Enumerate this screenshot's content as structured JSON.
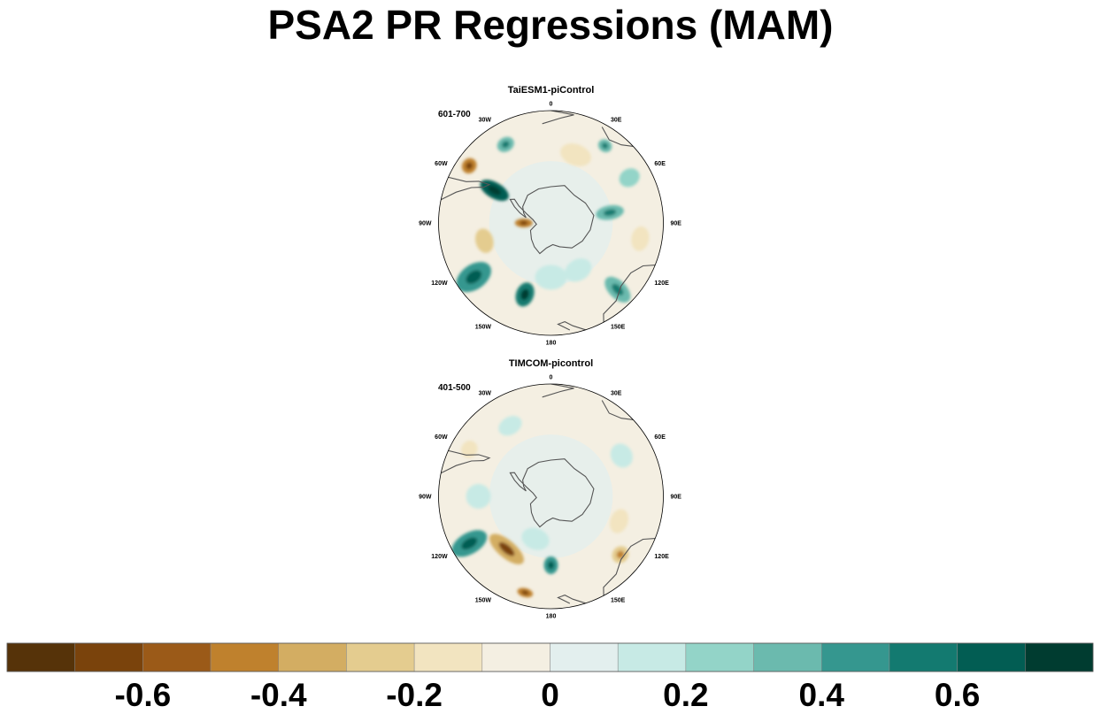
{
  "title": "PSA2 PR Regressions (MAM)",
  "panels": [
    {
      "title": "TaiESM1-piControl",
      "range": "601-700",
      "lon_labels": [
        "0",
        "30E",
        "60E",
        "90E",
        "120E",
        "150E",
        "180",
        "150W",
        "120W",
        "90W",
        "60W",
        "30W"
      ],
      "features": [
        {
          "lon": 200,
          "colat": 42,
          "v": 0.5,
          "rx": 10,
          "ry": 14
        },
        {
          "lon": 300,
          "colat": 36,
          "v": 0.6,
          "rx": 9,
          "ry": 18
        },
        {
          "lon": 305,
          "colat": 55,
          "v": -0.5,
          "rx": 9,
          "ry": 8
        },
        {
          "lon": 80,
          "colat": 33,
          "v": 0.35,
          "rx": 8,
          "ry": 16
        },
        {
          "lon": 35,
          "colat": 52,
          "v": 0.3,
          "rx": 8,
          "ry": 7
        },
        {
          "lon": 135,
          "colat": 52,
          "v": 0.35,
          "rx": 10,
          "ry": 18
        },
        {
          "lon": 235,
          "colat": 52,
          "v": 0.45,
          "rx": 14,
          "ry": 22
        },
        {
          "lon": 255,
          "colat": 38,
          "v": -0.25,
          "rx": 14,
          "ry": 10
        },
        {
          "lon": 270,
          "colat": 15,
          "v": -0.5,
          "rx": 5,
          "ry": 10
        },
        {
          "lon": 100,
          "colat": 50,
          "v": -0.15,
          "rx": 14,
          "ry": 10
        },
        {
          "lon": 330,
          "colat": 50,
          "v": 0.35,
          "rx": 10,
          "ry": 8
        },
        {
          "lon": 180,
          "colat": 30,
          "v": 0.15,
          "rx": 18,
          "ry": 14
        },
        {
          "lon": 20,
          "colat": 40,
          "v": -0.12,
          "rx": 18,
          "ry": 12
        },
        {
          "lon": 150,
          "colat": 30,
          "v": 0.12,
          "rx": 16,
          "ry": 12
        },
        {
          "lon": 60,
          "colat": 50,
          "v": 0.25,
          "rx": 10,
          "ry": 12
        }
      ]
    },
    {
      "title": "TIMCOM-picontrol",
      "range": "401-500",
      "lon_labels": [
        "0",
        "30E",
        "60E",
        "90E",
        "120E",
        "150E",
        "180",
        "150W",
        "120W",
        "90W",
        "60W",
        "30W"
      ],
      "features": [
        {
          "lon": 220,
          "colat": 38,
          "v": -0.4,
          "rx": 24,
          "ry": 10
        },
        {
          "lon": 240,
          "colat": 52,
          "v": 0.45,
          "rx": 12,
          "ry": 22
        },
        {
          "lon": 180,
          "colat": 38,
          "v": 0.4,
          "rx": 8,
          "ry": 10
        },
        {
          "lon": 195,
          "colat": 55,
          "v": -0.5,
          "rx": 9,
          "ry": 5
        },
        {
          "lon": 300,
          "colat": 52,
          "v": -0.2,
          "rx": 10,
          "ry": 9
        },
        {
          "lon": 130,
          "colat": 50,
          "v": -0.3,
          "rx": 10,
          "ry": 9
        },
        {
          "lon": 110,
          "colat": 40,
          "v": -0.12,
          "rx": 14,
          "ry": 10
        },
        {
          "lon": 200,
          "colat": 25,
          "v": 0.15,
          "rx": 16,
          "ry": 12
        },
        {
          "lon": 60,
          "colat": 45,
          "v": 0.12,
          "rx": 14,
          "ry": 12
        },
        {
          "lon": 330,
          "colat": 45,
          "v": 0.15,
          "rx": 14,
          "ry": 10
        },
        {
          "lon": 270,
          "colat": 40,
          "v": 0.12,
          "rx": 14,
          "ry": 14
        }
      ]
    }
  ],
  "chart_data": {
    "type": "heatmap",
    "title": "PSA2 PR Regressions (MAM)",
    "projection": "south-polar-stereographic",
    "panels": [
      "TaiESM1-piControl",
      "TIMCOM-picontrol"
    ],
    "colorbar": {
      "levels": [
        -0.7,
        -0.6,
        -0.5,
        -0.4,
        -0.3,
        -0.2,
        -0.1,
        0,
        0.1,
        0.2,
        0.3,
        0.4,
        0.5,
        0.6,
        0.7
      ],
      "colors": [
        "#563309",
        "#7a430c",
        "#9b5a18",
        "#bf812d",
        "#d3ad62",
        "#e4cc8f",
        "#f2e4c0",
        "#f4efe2",
        "#e3efee",
        "#c7eae5",
        "#93d4c8",
        "#6bbaae",
        "#35978f",
        "#137a70",
        "#025d53",
        "#003c30"
      ],
      "tick_values": [
        -0.6,
        -0.4,
        -0.2,
        0,
        0.2,
        0.4,
        0.6
      ],
      "tick_labels": [
        "-0.6",
        "-0.4",
        "-0.2",
        "0",
        "0.2",
        "0.4",
        "0.6"
      ]
    }
  }
}
